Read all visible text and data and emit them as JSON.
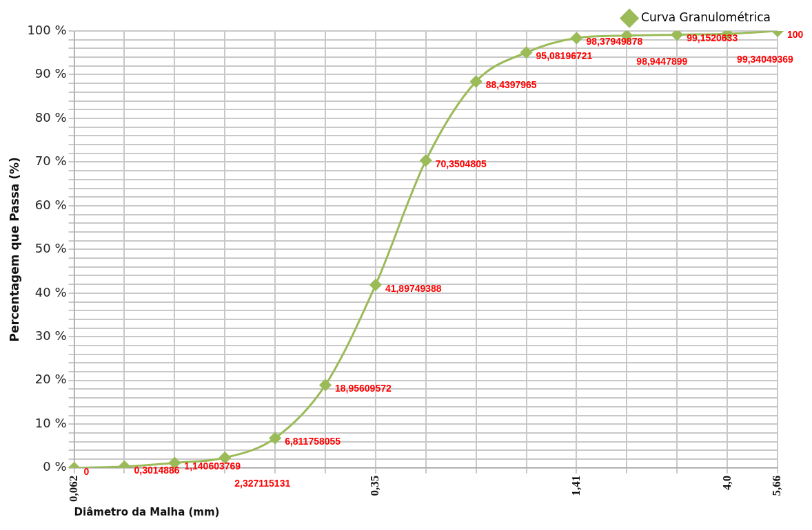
{
  "chart_data": {
    "type": "line",
    "xlabel": "Diâmetro da Malha (mm)",
    "ylabel": "Percentagem que Passa (%)",
    "categories": [
      "0,062",
      null,
      null,
      null,
      null,
      null,
      "0,35",
      null,
      null,
      null,
      "1,41",
      null,
      null,
      "4,0",
      "5,66"
    ],
    "series": [
      {
        "name": "Curva Granulométrica",
        "color": "#9bbb59",
        "values": [
          0,
          0.3014886,
          1.140603769,
          2.327115131,
          6.811758055,
          18.95609572,
          41.89749388,
          70.3504805,
          88.4397965,
          95.08196721,
          98.37949878,
          98.9447899,
          99.1520633,
          99.34049369,
          100
        ],
        "value_labels": [
          "0",
          "0,3014886",
          "1,140603769",
          "2,327115131",
          "6,811758055",
          "18,95609572",
          "41,89749388",
          "70,3504805",
          "88,4397965",
          "95,08196721",
          "98,37949878",
          "98,9447899",
          "99,1520633",
          "99,34049369",
          "100"
        ]
      }
    ],
    "ylim": [
      0,
      100
    ],
    "yticks": [
      {
        "value": 0,
        "label": "0 %"
      },
      {
        "value": 2,
        "label": null
      },
      {
        "value": 4,
        "label": null
      },
      {
        "value": 6,
        "label": null
      },
      {
        "value": 8,
        "label": null
      },
      {
        "value": 10,
        "label": "10 %"
      },
      {
        "value": 12,
        "label": null
      },
      {
        "value": 14,
        "label": null
      },
      {
        "value": 16,
        "label": null
      },
      {
        "value": 18,
        "label": null
      },
      {
        "value": 20,
        "label": "20 %"
      },
      {
        "value": 22,
        "label": null
      },
      {
        "value": 24,
        "label": null
      },
      {
        "value": 26,
        "label": null
      },
      {
        "value": 28,
        "label": null
      },
      {
        "value": 30,
        "label": "30 %"
      },
      {
        "value": 32,
        "label": null
      },
      {
        "value": 34,
        "label": null
      },
      {
        "value": 36,
        "label": null
      },
      {
        "value": 38,
        "label": null
      },
      {
        "value": 40,
        "label": "40 %"
      },
      {
        "value": 42,
        "label": null
      },
      {
        "value": 44,
        "label": null
      },
      {
        "value": 46,
        "label": null
      },
      {
        "value": 48,
        "label": null
      },
      {
        "value": 50,
        "label": "50 %"
      },
      {
        "value": 52,
        "label": null
      },
      {
        "value": 54,
        "label": null
      },
      {
        "value": 56,
        "label": null
      },
      {
        "value": 58,
        "label": null
      },
      {
        "value": 60,
        "label": "60 %"
      },
      {
        "value": 62,
        "label": null
      },
      {
        "value": 64,
        "label": null
      },
      {
        "value": 66,
        "label": null
      },
      {
        "value": 68,
        "label": null
      },
      {
        "value": 70,
        "label": "70 %"
      },
      {
        "value": 72,
        "label": null
      },
      {
        "value": 74,
        "label": null
      },
      {
        "value": 76,
        "label": null
      },
      {
        "value": 78,
        "label": null
      },
      {
        "value": 80,
        "label": "80 %"
      },
      {
        "value": 82,
        "label": null
      },
      {
        "value": 84,
        "label": null
      },
      {
        "value": 86,
        "label": null
      },
      {
        "value": 88,
        "label": null
      },
      {
        "value": 90,
        "label": "90 %"
      },
      {
        "value": 92,
        "label": null
      },
      {
        "value": 94,
        "label": null
      },
      {
        "value": 96,
        "label": null
      },
      {
        "value": 98,
        "label": null
      },
      {
        "value": 100,
        "label": "100 %"
      }
    ],
    "grid": true,
    "legend": "top",
    "marker": "diamond",
    "line_style": "solid"
  }
}
